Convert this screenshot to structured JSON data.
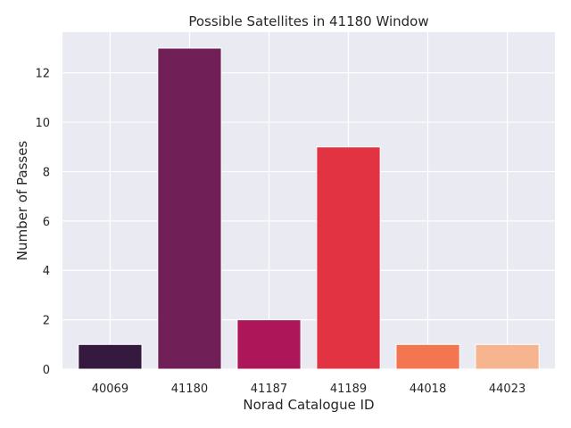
{
  "chart_data": {
    "type": "bar",
    "title": "Possible Satellites in 41180 Window",
    "xlabel": "Norad Catalogue ID",
    "ylabel": "Number of Passes",
    "categories": [
      "40069",
      "41180",
      "41187",
      "41189",
      "44018",
      "44023"
    ],
    "values": [
      1,
      13,
      2,
      9,
      1,
      1
    ],
    "colors": [
      "#35193e",
      "#701f57",
      "#ad1759",
      "#e13342",
      "#f37651",
      "#f6b48f"
    ],
    "ylim": [
      0,
      13.65
    ],
    "yticks": [
      0,
      2,
      4,
      6,
      8,
      10,
      12
    ],
    "grid": true,
    "background_color": "#eaeaf2",
    "grid_color": "#ffffff"
  }
}
